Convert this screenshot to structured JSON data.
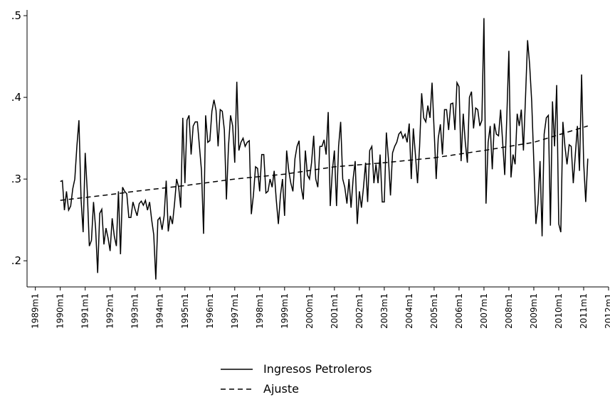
{
  "chart_data": {
    "type": "line",
    "xlim": [
      344,
      624
    ],
    "ylim": [
      0.168,
      0.507
    ],
    "xticks": [
      {
        "value": 348,
        "label": "1989m1"
      },
      {
        "value": 360,
        "label": "1990m1"
      },
      {
        "value": 372,
        "label": "1991m1"
      },
      {
        "value": 384,
        "label": "1992m1"
      },
      {
        "value": 396,
        "label": "1993m1"
      },
      {
        "value": 408,
        "label": "1994m1"
      },
      {
        "value": 420,
        "label": "1995m1"
      },
      {
        "value": 432,
        "label": "1996m1"
      },
      {
        "value": 444,
        "label": "1997m1"
      },
      {
        "value": 456,
        "label": "1998m1"
      },
      {
        "value": 468,
        "label": "1999m1"
      },
      {
        "value": 480,
        "label": "2000m1"
      },
      {
        "value": 492,
        "label": "2001m1"
      },
      {
        "value": 504,
        "label": "2002m1"
      },
      {
        "value": 516,
        "label": "2003m1"
      },
      {
        "value": 528,
        "label": "2004m1"
      },
      {
        "value": 540,
        "label": "2005m1"
      },
      {
        "value": 552,
        "label": "2006m1"
      },
      {
        "value": 564,
        "label": "2007m1"
      },
      {
        "value": 576,
        "label": "2008m1"
      },
      {
        "value": 588,
        "label": "2009m1"
      },
      {
        "value": 600,
        "label": "2010m1"
      },
      {
        "value": 612,
        "label": "2011m1"
      },
      {
        "value": 624,
        "label": "2012m1"
      }
    ],
    "yticks": [
      {
        "value": 0.2,
        "label": ".2"
      },
      {
        "value": 0.3,
        "label": ".3"
      },
      {
        "value": 0.4,
        "label": ".4"
      },
      {
        "value": 0.5,
        "label": ".5"
      }
    ],
    "series": [
      {
        "name": "Ingresos Petroleros",
        "color": "#000000",
        "dash": "solid",
        "x": [
          360,
          361,
          362,
          363,
          364,
          365,
          366,
          367,
          368,
          369,
          370,
          371,
          372,
          373,
          374,
          375,
          376,
          377,
          378,
          379,
          380,
          381,
          382,
          383,
          384,
          385,
          386,
          387,
          388,
          389,
          390,
          391,
          392,
          393,
          394,
          395,
          396,
          397,
          398,
          399,
          400,
          401,
          402,
          403,
          404,
          405,
          406,
          407,
          408,
          409,
          410,
          411,
          412,
          413,
          414,
          415,
          416,
          417,
          418,
          419,
          420,
          421,
          422,
          423,
          424,
          425,
          426,
          427,
          428,
          429,
          430,
          431,
          432,
          433,
          434,
          435,
          436,
          437,
          438,
          439,
          440,
          441,
          442,
          443,
          444,
          445,
          446,
          447,
          448,
          449,
          450,
          451,
          452,
          453,
          454,
          455,
          456,
          457,
          458,
          459,
          460,
          461,
          462,
          463,
          464,
          465,
          466,
          467,
          468,
          469,
          470,
          471,
          472,
          473,
          474,
          475,
          476,
          477,
          478,
          479,
          480,
          481,
          482,
          483,
          484,
          485,
          486,
          487,
          488,
          489,
          490,
          491,
          492,
          493,
          494,
          495,
          496,
          497,
          498,
          499,
          500,
          501,
          502,
          503,
          504,
          505,
          506,
          507,
          508,
          509,
          510,
          511,
          512,
          513,
          514,
          515,
          516,
          517,
          518,
          519,
          520,
          521,
          522,
          523,
          524,
          525,
          526,
          527,
          528,
          529,
          530,
          531,
          532,
          533,
          534,
          535,
          536,
          537,
          538,
          539,
          540,
          541,
          542,
          543,
          544,
          545,
          546,
          547,
          548,
          549,
          550,
          551,
          552,
          553,
          554,
          555,
          556,
          557,
          558,
          559,
          560,
          561,
          562,
          563,
          564,
          565,
          566,
          567,
          568,
          569,
          570,
          571,
          572,
          573,
          574,
          575,
          576,
          577,
          578,
          579,
          580,
          581,
          582,
          583,
          584,
          585,
          586,
          587,
          588,
          589,
          590,
          591,
          592,
          593,
          594,
          595,
          596,
          597,
          598,
          599,
          600,
          601,
          602,
          603,
          604,
          605,
          606,
          607,
          608,
          609,
          610,
          611,
          612,
          613,
          614
        ],
        "values": [
          0.297,
          0.298,
          0.262,
          0.285,
          0.262,
          0.267,
          0.288,
          0.3,
          0.34,
          0.372,
          0.275,
          0.235,
          0.332,
          0.285,
          0.218,
          0.225,
          0.272,
          0.24,
          0.185,
          0.258,
          0.263,
          0.22,
          0.24,
          0.228,
          0.212,
          0.252,
          0.23,
          0.218,
          0.285,
          0.208,
          0.29,
          0.285,
          0.282,
          0.253,
          0.253,
          0.272,
          0.263,
          0.255,
          0.27,
          0.273,
          0.268,
          0.274,
          0.262,
          0.272,
          0.25,
          0.232,
          0.177,
          0.25,
          0.253,
          0.238,
          0.255,
          0.298,
          0.236,
          0.255,
          0.245,
          0.27,
          0.3,
          0.29,
          0.265,
          0.375,
          0.295,
          0.372,
          0.378,
          0.33,
          0.365,
          0.37,
          0.37,
          0.34,
          0.31,
          0.233,
          0.378,
          0.345,
          0.347,
          0.383,
          0.397,
          0.384,
          0.34,
          0.385,
          0.383,
          0.36,
          0.275,
          0.34,
          0.378,
          0.365,
          0.32,
          0.419,
          0.335,
          0.345,
          0.35,
          0.34,
          0.345,
          0.347,
          0.257,
          0.28,
          0.315,
          0.313,
          0.285,
          0.33,
          0.33,
          0.283,
          0.285,
          0.3,
          0.29,
          0.31,
          0.275,
          0.245,
          0.28,
          0.3,
          0.255,
          0.335,
          0.31,
          0.295,
          0.285,
          0.325,
          0.34,
          0.347,
          0.29,
          0.275,
          0.335,
          0.305,
          0.3,
          0.32,
          0.353,
          0.3,
          0.29,
          0.34,
          0.34,
          0.348,
          0.33,
          0.382,
          0.267,
          0.31,
          0.335,
          0.267,
          0.34,
          0.37,
          0.3,
          0.29,
          0.27,
          0.3,
          0.265,
          0.3,
          0.322,
          0.245,
          0.285,
          0.265,
          0.29,
          0.32,
          0.272,
          0.335,
          0.34,
          0.295,
          0.318,
          0.295,
          0.33,
          0.272,
          0.272,
          0.357,
          0.325,
          0.28,
          0.332,
          0.34,
          0.345,
          0.355,
          0.358,
          0.35,
          0.355,
          0.345,
          0.368,
          0.3,
          0.362,
          0.33,
          0.295,
          0.34,
          0.405,
          0.375,
          0.37,
          0.39,
          0.375,
          0.418,
          0.36,
          0.3,
          0.35,
          0.367,
          0.33,
          0.385,
          0.385,
          0.36,
          0.392,
          0.393,
          0.36,
          0.418,
          0.413,
          0.322,
          0.38,
          0.345,
          0.32,
          0.4,
          0.407,
          0.362,
          0.387,
          0.385,
          0.365,
          0.372,
          0.497,
          0.27,
          0.345,
          0.365,
          0.312,
          0.368,
          0.355,
          0.353,
          0.385,
          0.345,
          0.305,
          0.375,
          0.457,
          0.302,
          0.33,
          0.318,
          0.38,
          0.365,
          0.385,
          0.335,
          0.4,
          0.47,
          0.44,
          0.395,
          0.32,
          0.245,
          0.27,
          0.322,
          0.23,
          0.355,
          0.375,
          0.378,
          0.243,
          0.395,
          0.34,
          0.415,
          0.245,
          0.235,
          0.37,
          0.34,
          0.318,
          0.342,
          0.34,
          0.295,
          0.33,
          0.365,
          0.31,
          0.428,
          0.32,
          0.272,
          0.325
        ]
      },
      {
        "name": "Ajuste",
        "color": "#000000",
        "dash": "dashed",
        "x": [
          360,
          384,
          396,
          420,
          444,
          468,
          492,
          516,
          540,
          564,
          588,
          614
        ],
        "values": [
          0.274,
          0.281,
          0.285,
          0.292,
          0.3,
          0.306,
          0.315,
          0.32,
          0.326,
          0.335,
          0.345,
          0.365
        ]
      }
    ]
  }
}
